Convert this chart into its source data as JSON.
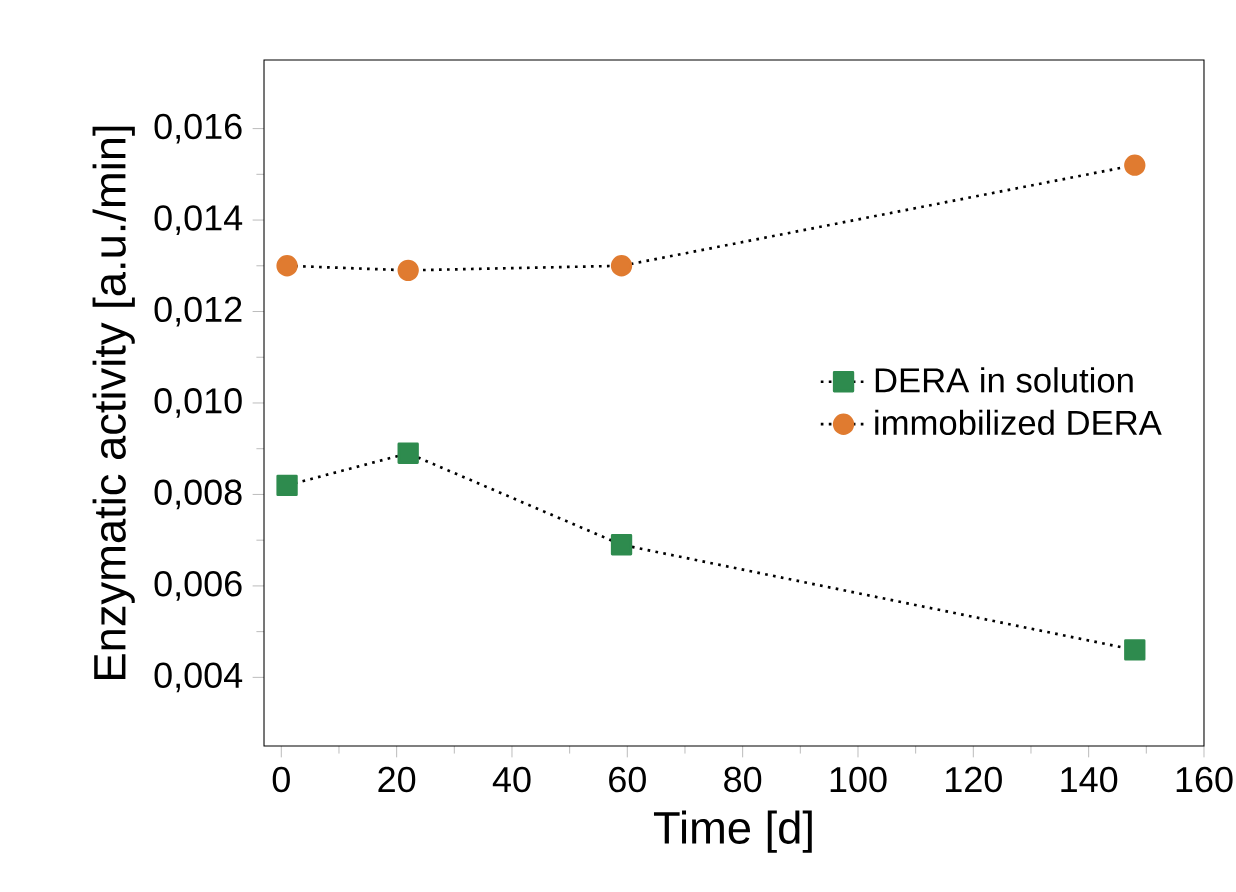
{
  "chart_data": {
    "type": "line",
    "xlabel": "Time [d]",
    "ylabel": "Enzymatic activity [a.u./min]",
    "xlim": [
      -3,
      160
    ],
    "ylim": [
      0.0025,
      0.0175
    ],
    "xticks": [
      0,
      20,
      40,
      60,
      80,
      100,
      120,
      140,
      160
    ],
    "yticks": [
      {
        "value": 0.004,
        "label": "0,004"
      },
      {
        "value": 0.006,
        "label": "0,006"
      },
      {
        "value": 0.008,
        "label": "0,008"
      },
      {
        "value": 0.01,
        "label": "0,010"
      },
      {
        "value": 0.012,
        "label": "0,012"
      },
      {
        "value": 0.014,
        "label": "0,014"
      },
      {
        "value": 0.016,
        "label": "0,016"
      }
    ],
    "x": [
      1,
      22,
      59,
      148
    ],
    "series": [
      {
        "name": "DERA in solution",
        "color": "#2e8b4e",
        "marker": "square",
        "values": [
          0.0082,
          0.0089,
          0.0069,
          0.0046
        ]
      },
      {
        "name": "immobilized DERA",
        "color": "#e07b30",
        "marker": "circle",
        "values": [
          0.013,
          0.0129,
          0.013,
          0.0152
        ]
      }
    ],
    "line_style": "dotted",
    "grid": false,
    "legend": "right"
  }
}
